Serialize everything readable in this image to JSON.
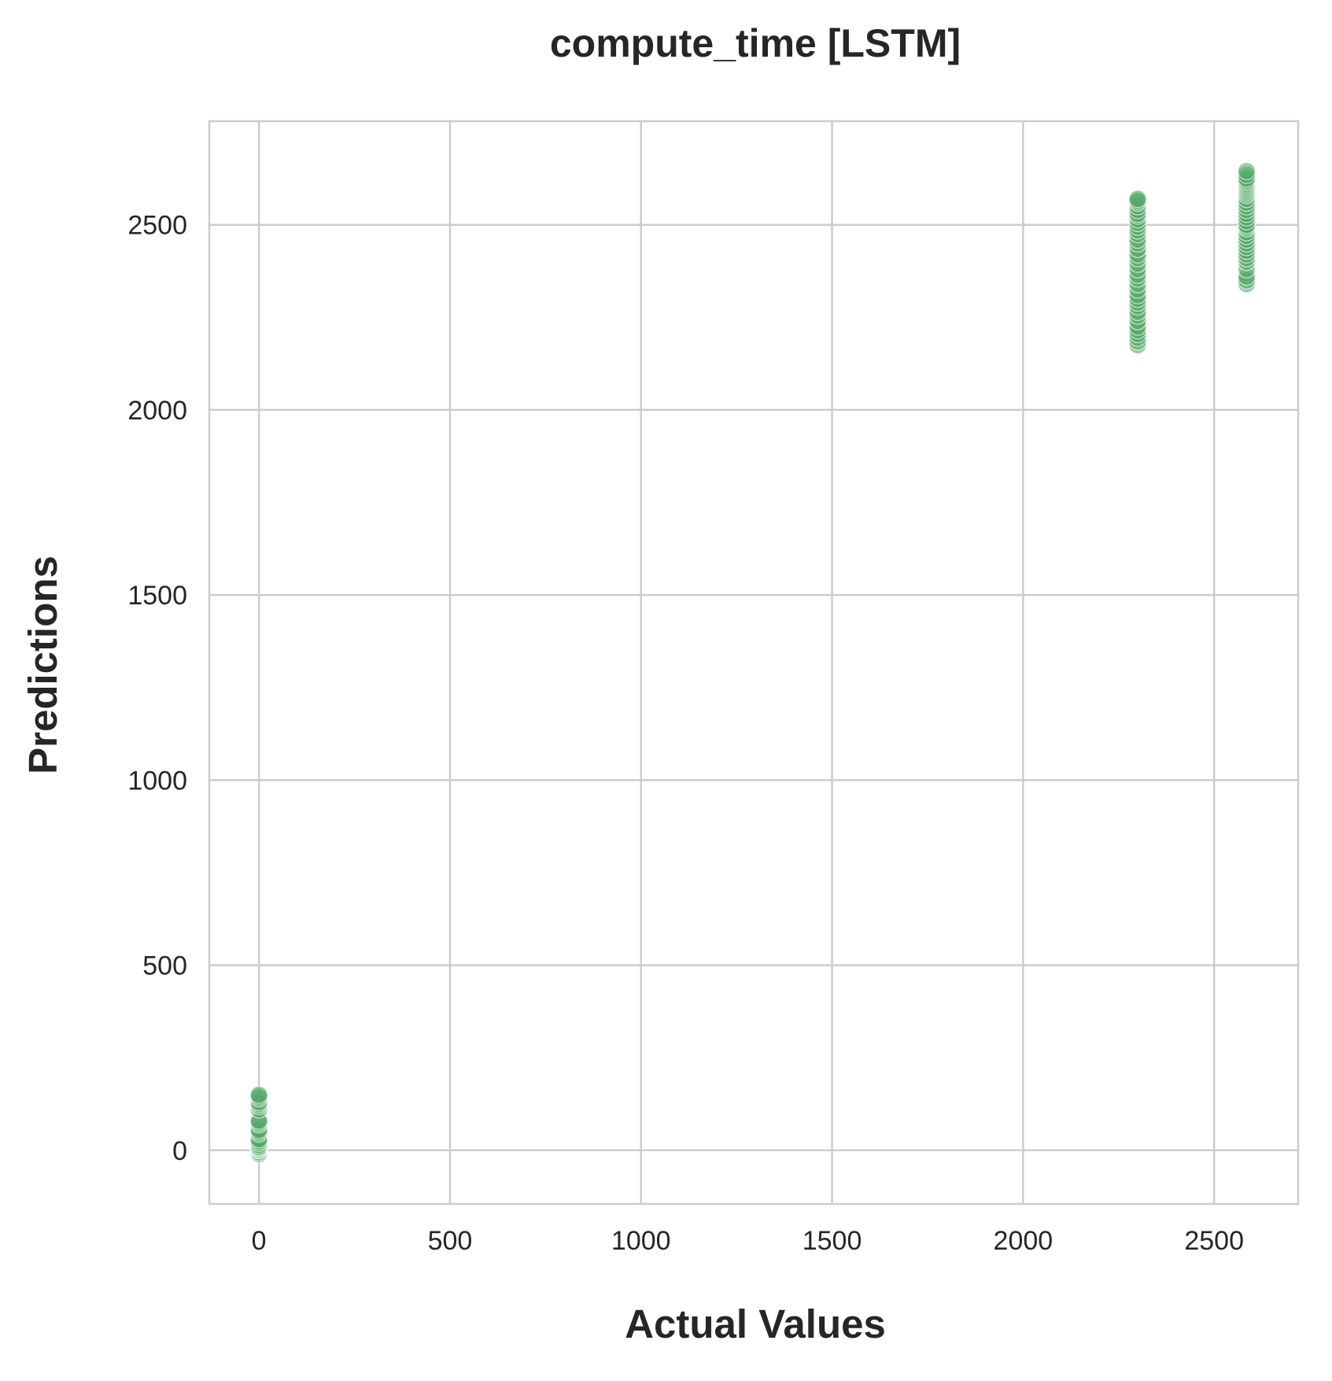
{
  "chart_data": {
    "type": "scatter",
    "title": "compute_time [LSTM]",
    "xlabel": "Actual Values",
    "ylabel": "Predictions",
    "xlim": [
      -130,
      2720
    ],
    "ylim": [
      -145,
      2780
    ],
    "xticks": [
      0,
      500,
      1000,
      1500,
      2000,
      2500
    ],
    "yticks": [
      0,
      500,
      1000,
      1500,
      2000,
      2500
    ],
    "grid": true,
    "marker_color": "#55a868",
    "series": [
      {
        "x": [
          0,
          0,
          0,
          0,
          0,
          0,
          0,
          0,
          0,
          0,
          0,
          0,
          0,
          0,
          0,
          0,
          0,
          0,
          0,
          0,
          0,
          0,
          0,
          0,
          2300,
          2300,
          2300,
          2300,
          2300,
          2300,
          2300,
          2300,
          2300,
          2300,
          2300,
          2300,
          2300,
          2300,
          2300,
          2300,
          2300,
          2300,
          2300,
          2300,
          2300,
          2300,
          2300,
          2300,
          2300,
          2300,
          2300,
          2300,
          2300,
          2300,
          2300,
          2300,
          2300,
          2300,
          2300,
          2300,
          2585,
          2585,
          2585,
          2585,
          2585,
          2585,
          2585,
          2585,
          2585,
          2585,
          2585,
          2585,
          2585,
          2585,
          2585,
          2585,
          2585,
          2585,
          2585,
          2585,
          2585,
          2585,
          2585,
          2585,
          2585,
          2585,
          2585,
          2585,
          2585,
          2585,
          2585,
          2585,
          2585,
          2585,
          2585
        ],
        "y": [
          -10,
          -5,
          0,
          2,
          5,
          8,
          10,
          15,
          20,
          25,
          30,
          45,
          50,
          55,
          70,
          75,
          80,
          110,
          120,
          125,
          130,
          140,
          145,
          150,
          2175,
          2185,
          2195,
          2205,
          2215,
          2225,
          2240,
          2255,
          2265,
          2280,
          2290,
          2300,
          2310,
          2325,
          2340,
          2355,
          2365,
          2380,
          2395,
          2410,
          2420,
          2435,
          2450,
          2460,
          2475,
          2485,
          2495,
          2505,
          2515,
          2525,
          2530,
          2540,
          2550,
          2560,
          2565,
          2570,
          2340,
          2350,
          2360,
          2380,
          2400,
          2410,
          2420,
          2430,
          2440,
          2450,
          2460,
          2470,
          2480,
          2490,
          2495,
          2500,
          2510,
          2520,
          2530,
          2540,
          2550,
          2560,
          2570,
          2580,
          2585,
          2590,
          2595,
          2600,
          2605,
          2610,
          2615,
          2620,
          2625,
          2635,
          2645
        ]
      }
    ]
  }
}
